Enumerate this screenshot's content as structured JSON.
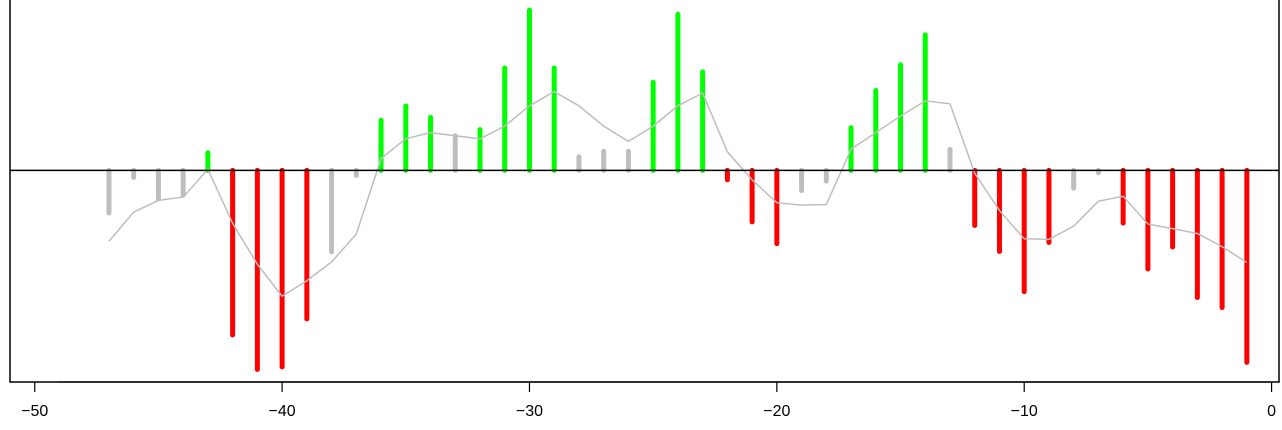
{
  "chart_data": {
    "type": "bar",
    "title": "",
    "xlabel": "",
    "ylabel": "",
    "xlim": [
      -51,
      0.3
    ],
    "ylim": [
      -0.108,
      0.088
    ],
    "x_ticks": [
      -50,
      -40,
      -30,
      -20,
      -10,
      0
    ],
    "x_tick_labels": [
      "−50",
      "−40",
      "−30",
      "−20",
      "−10",
      "0"
    ],
    "zero_line": true,
    "grid": false,
    "legend": "none",
    "colors": {
      "positive": "#00ff00",
      "negative": "#ff0000",
      "neutral": "#bebebe",
      "trend": "#bebebe",
      "axis": "#000000"
    },
    "bars": [
      {
        "x": -47,
        "value": -0.0217,
        "group": "neutral"
      },
      {
        "x": -46,
        "value": -0.0036,
        "group": "neutral"
      },
      {
        "x": -45,
        "value": -0.0145,
        "group": "neutral"
      },
      {
        "x": -44,
        "value": -0.0127,
        "group": "neutral"
      },
      {
        "x": -43,
        "value": 0.009,
        "group": "positive"
      },
      {
        "x": -42,
        "value": -0.084,
        "group": "negative"
      },
      {
        "x": -41,
        "value": -0.1016,
        "group": "negative"
      },
      {
        "x": -40,
        "value": -0.1003,
        "group": "negative"
      },
      {
        "x": -39,
        "value": -0.0758,
        "group": "negative"
      },
      {
        "x": -38,
        "value": -0.0416,
        "group": "neutral"
      },
      {
        "x": -37,
        "value": -0.0025,
        "group": "neutral"
      },
      {
        "x": -36,
        "value": 0.0256,
        "group": "positive"
      },
      {
        "x": -35,
        "value": 0.0329,
        "group": "positive"
      },
      {
        "x": -34,
        "value": 0.0271,
        "group": "positive"
      },
      {
        "x": -33,
        "value": 0.0177,
        "group": "neutral"
      },
      {
        "x": -32,
        "value": 0.0208,
        "group": "positive"
      },
      {
        "x": -31,
        "value": 0.0523,
        "group": "positive"
      },
      {
        "x": -30,
        "value": 0.0818,
        "group": "positive"
      },
      {
        "x": -29,
        "value": 0.0523,
        "group": "positive"
      },
      {
        "x": -28,
        "value": 0.0069,
        "group": "neutral"
      },
      {
        "x": -27,
        "value": 0.0098,
        "group": "neutral"
      },
      {
        "x": -26,
        "value": 0.0098,
        "group": "neutral"
      },
      {
        "x": -25,
        "value": 0.045,
        "group": "positive"
      },
      {
        "x": -24,
        "value": 0.0797,
        "group": "positive"
      },
      {
        "x": -23,
        "value": 0.0503,
        "group": "positive"
      },
      {
        "x": -22,
        "value": -0.0048,
        "group": "negative"
      },
      {
        "x": -21,
        "value": -0.0263,
        "group": "negative"
      },
      {
        "x": -20,
        "value": -0.0374,
        "group": "negative"
      },
      {
        "x": -19,
        "value": -0.0103,
        "group": "neutral"
      },
      {
        "x": -18,
        "value": -0.0055,
        "group": "neutral"
      },
      {
        "x": -17,
        "value": 0.0218,
        "group": "positive"
      },
      {
        "x": -16,
        "value": 0.0408,
        "group": "positive"
      },
      {
        "x": -15,
        "value": 0.0539,
        "group": "positive"
      },
      {
        "x": -14,
        "value": 0.0692,
        "group": "positive"
      },
      {
        "x": -13,
        "value": 0.0107,
        "group": "neutral"
      },
      {
        "x": -12,
        "value": -0.0281,
        "group": "negative"
      },
      {
        "x": -11,
        "value": -0.0414,
        "group": "negative"
      },
      {
        "x": -10,
        "value": -0.0619,
        "group": "negative"
      },
      {
        "x": -9,
        "value": -0.0368,
        "group": "negative"
      },
      {
        "x": -8,
        "value": -0.0091,
        "group": "neutral"
      },
      {
        "x": -7,
        "value": -0.0012,
        "group": "neutral"
      },
      {
        "x": -6,
        "value": -0.0269,
        "group": "negative"
      },
      {
        "x": -5,
        "value": -0.0503,
        "group": "negative"
      },
      {
        "x": -4,
        "value": -0.0391,
        "group": "negative"
      },
      {
        "x": -3,
        "value": -0.0649,
        "group": "negative"
      },
      {
        "x": -2,
        "value": -0.07,
        "group": "negative"
      },
      {
        "x": -1,
        "value": -0.098,
        "group": "negative"
      }
    ],
    "trend_line": {
      "x": [
        -47,
        -46,
        -45,
        -44,
        -43,
        -42,
        -41,
        -40,
        -39,
        -38,
        -37,
        -36,
        -35,
        -34,
        -33,
        -32,
        -31,
        -30,
        -29,
        -28,
        -27,
        -26,
        -25,
        -24,
        -23,
        -22,
        -21,
        -20,
        -19,
        -18,
        -17,
        -16,
        -15,
        -14,
        -13,
        -12,
        -11,
        -10,
        -9,
        -8,
        -7,
        -6,
        -5,
        -4,
        -3,
        -2,
        -1
      ],
      "y": [
        -0.0362,
        -0.0213,
        -0.0153,
        -0.0136,
        0.0006,
        -0.027,
        -0.0479,
        -0.0642,
        -0.0563,
        -0.0467,
        -0.0325,
        0.0061,
        0.0162,
        0.0193,
        0.0177,
        0.0161,
        0.0226,
        0.033,
        0.0402,
        0.033,
        0.0226,
        0.0148,
        0.0226,
        0.033,
        0.0395,
        0.0095,
        -0.0048,
        -0.0165,
        -0.0177,
        -0.0174,
        0.0109,
        0.0193,
        0.0277,
        0.0355,
        0.034,
        -0.0014,
        -0.0205,
        -0.0349,
        -0.0352,
        -0.0285,
        -0.0157,
        -0.0132,
        -0.0274,
        -0.0297,
        -0.0322,
        -0.0389,
        -0.047
      ]
    }
  }
}
